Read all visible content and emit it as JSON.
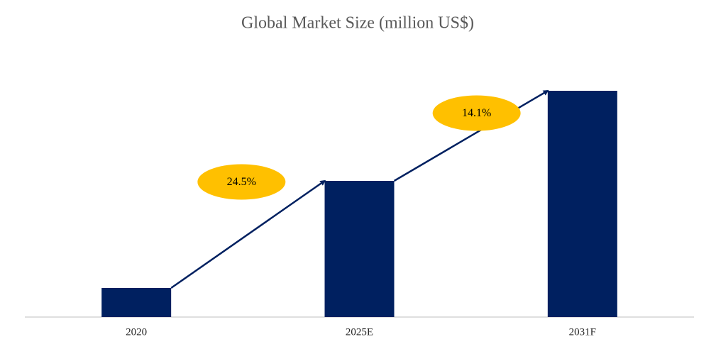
{
  "chart_data": {
    "type": "bar",
    "title": "Global Market Size (million US$)",
    "categories": [
      "2020",
      "2025E",
      "2031F"
    ],
    "values": [
      41,
      192,
      319
    ],
    "color": "#002060",
    "ylim": [
      0,
      330
    ],
    "annotations": [
      "24.5%",
      "14.1%"
    ]
  }
}
